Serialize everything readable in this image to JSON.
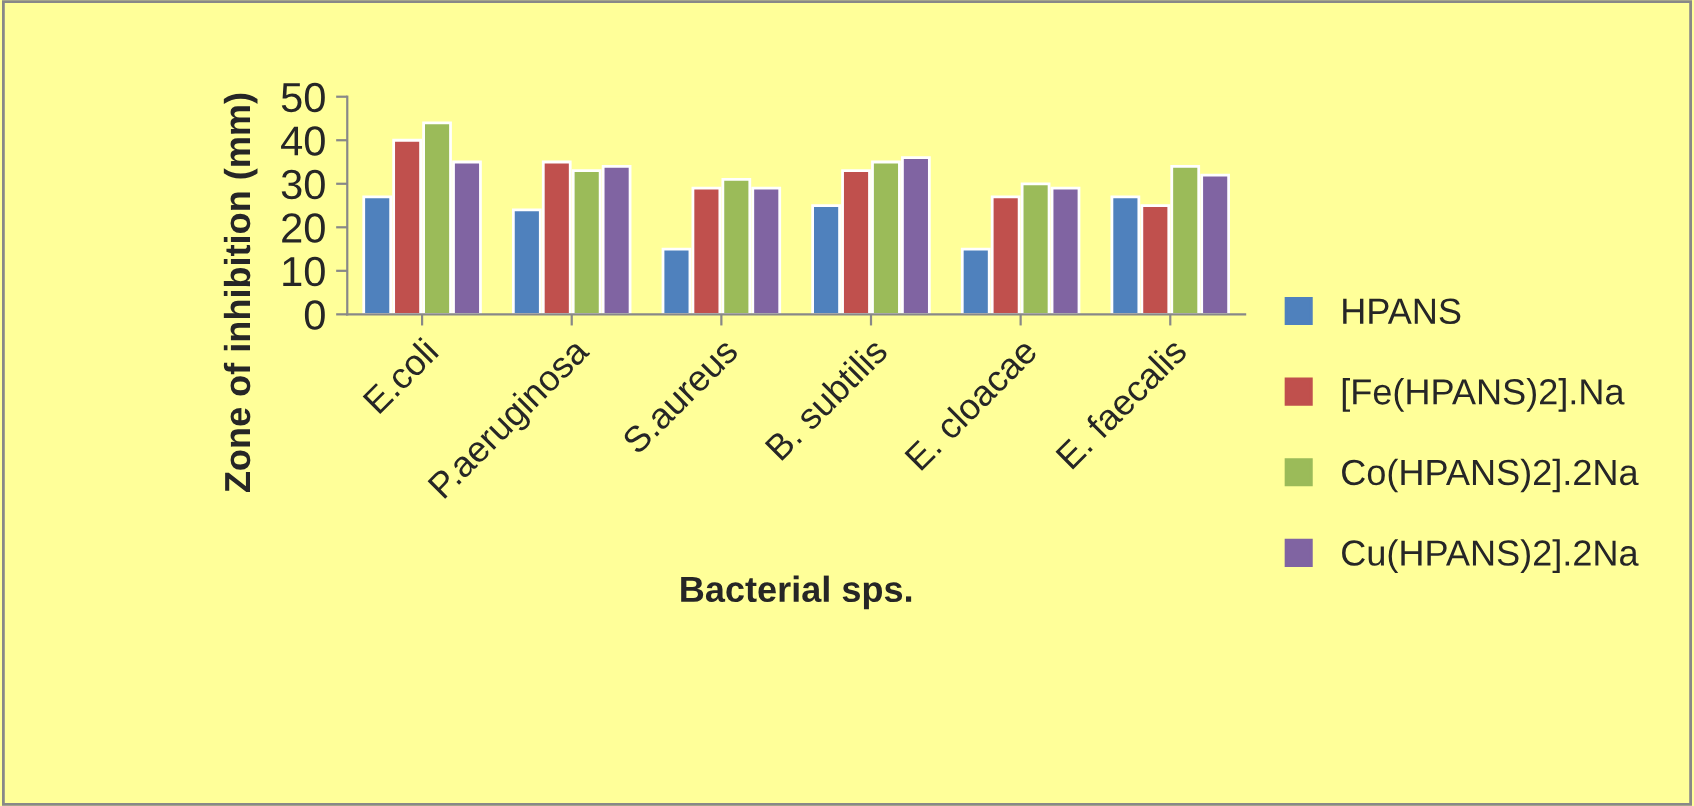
{
  "chart_data": {
    "type": "bar",
    "xlabel": "Bacterial sps.",
    "ylabel": "Zone of inhibition (mm)",
    "categories": [
      "E.coli",
      "P.aeruginosa",
      "S.aureus",
      "B. subtilis",
      "E. cloacae",
      "E. faecalis"
    ],
    "series": [
      {
        "name": "HPANS",
        "color": "#4f81bd",
        "values": [
          27,
          24,
          15,
          25,
          15,
          27
        ]
      },
      {
        "name": "[Fe(HPANS)2].Na",
        "color": "#c0504d",
        "values": [
          40,
          35,
          29,
          33,
          27,
          25
        ]
      },
      {
        "name": "Co(HPANS)2].2Na",
        "color": "#9bbb59",
        "values": [
          44,
          33,
          31,
          35,
          30,
          34
        ]
      },
      {
        "name": "Cu(HPANS)2].2Na",
        "color": "#8064a2",
        "values": [
          35,
          34,
          29,
          36,
          29,
          32
        ]
      }
    ],
    "ylim": [
      0,
      50
    ],
    "yticks": [
      0,
      10,
      20,
      30,
      40,
      50
    ],
    "grid": false,
    "legend": "right"
  }
}
